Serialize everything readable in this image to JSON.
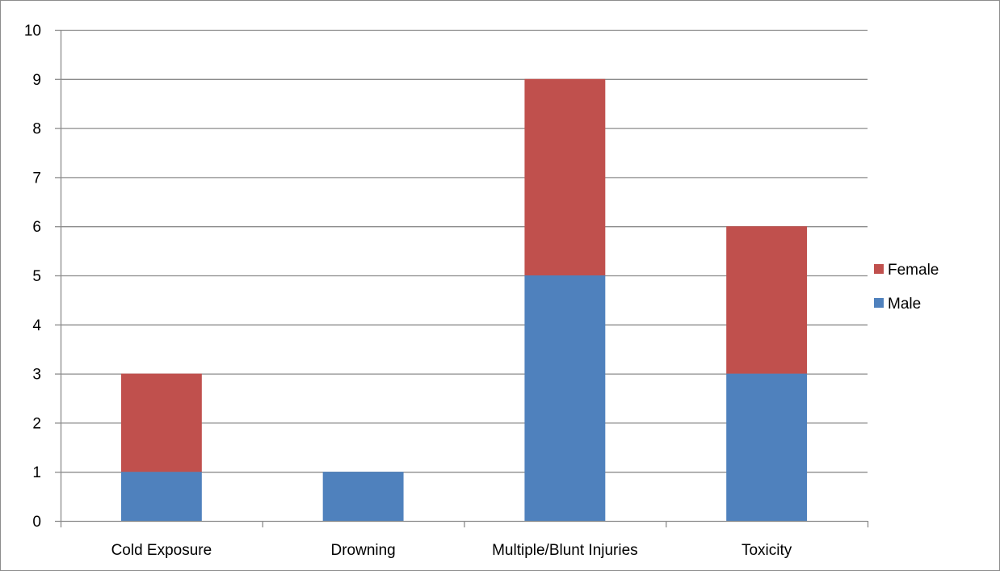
{
  "chart_data": {
    "type": "bar",
    "stacked": true,
    "categories": [
      "Cold Exposure",
      "Drowning",
      "Multiple/Blunt Injuries",
      "Toxicity"
    ],
    "series": [
      {
        "name": "Male",
        "values": [
          1,
          1,
          5,
          3
        ],
        "color": "#4f81bd"
      },
      {
        "name": "Female",
        "values": [
          2,
          0,
          4,
          3
        ],
        "color": "#c0504d"
      }
    ],
    "title": "",
    "xlabel": "",
    "ylabel": "",
    "ylim": [
      0,
      10
    ],
    "yticks": [
      "0",
      "1",
      "2",
      "3",
      "4",
      "5",
      "6",
      "7",
      "8",
      "9",
      "10"
    ],
    "grid": true,
    "legend_position": "right",
    "legend_order": [
      "Female",
      "Male"
    ]
  }
}
